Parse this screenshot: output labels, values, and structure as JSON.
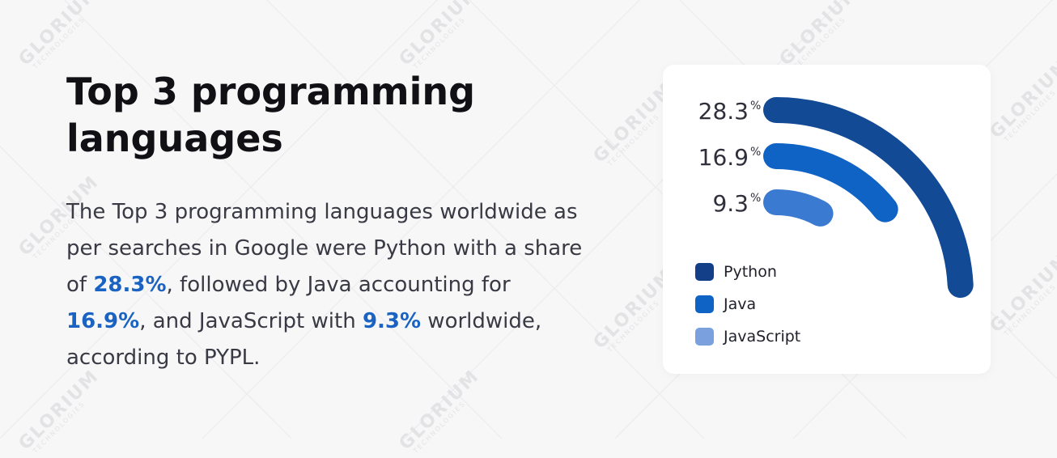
{
  "heading": "Top 3 programming languages",
  "paragraph": {
    "p1": "The Top 3 programming languages worldwide as per searches in Google were Python with a share of ",
    "h1": "28.3%",
    "p2": ", followed by Java accounting for ",
    "h2": "16.9%",
    "p3": ", and JavaScript with ",
    "h3": "9.3%",
    "p4": " worldwide, according to PYPL."
  },
  "watermark": {
    "main": "GLORIUM",
    "sub": "TECHNOLOGIES"
  },
  "chart_data": {
    "type": "radial-bar",
    "unit": "%",
    "categories": [
      "Python",
      "Java",
      "JavaScript"
    ],
    "values": [
      28.3,
      16.9,
      9.3
    ],
    "value_labels": [
      "28.3",
      "16.9",
      "9.3"
    ],
    "colors": [
      "#124a96",
      "#0f63c5",
      "#3a7ad0"
    ],
    "legend": [
      {
        "label": "Python",
        "color": "#123f88"
      },
      {
        "label": "Java",
        "color": "#0f63c5"
      },
      {
        "label": "JavaScript",
        "color": "#7aa0de"
      }
    ],
    "legend_position": "bottom-left",
    "grid": false
  }
}
